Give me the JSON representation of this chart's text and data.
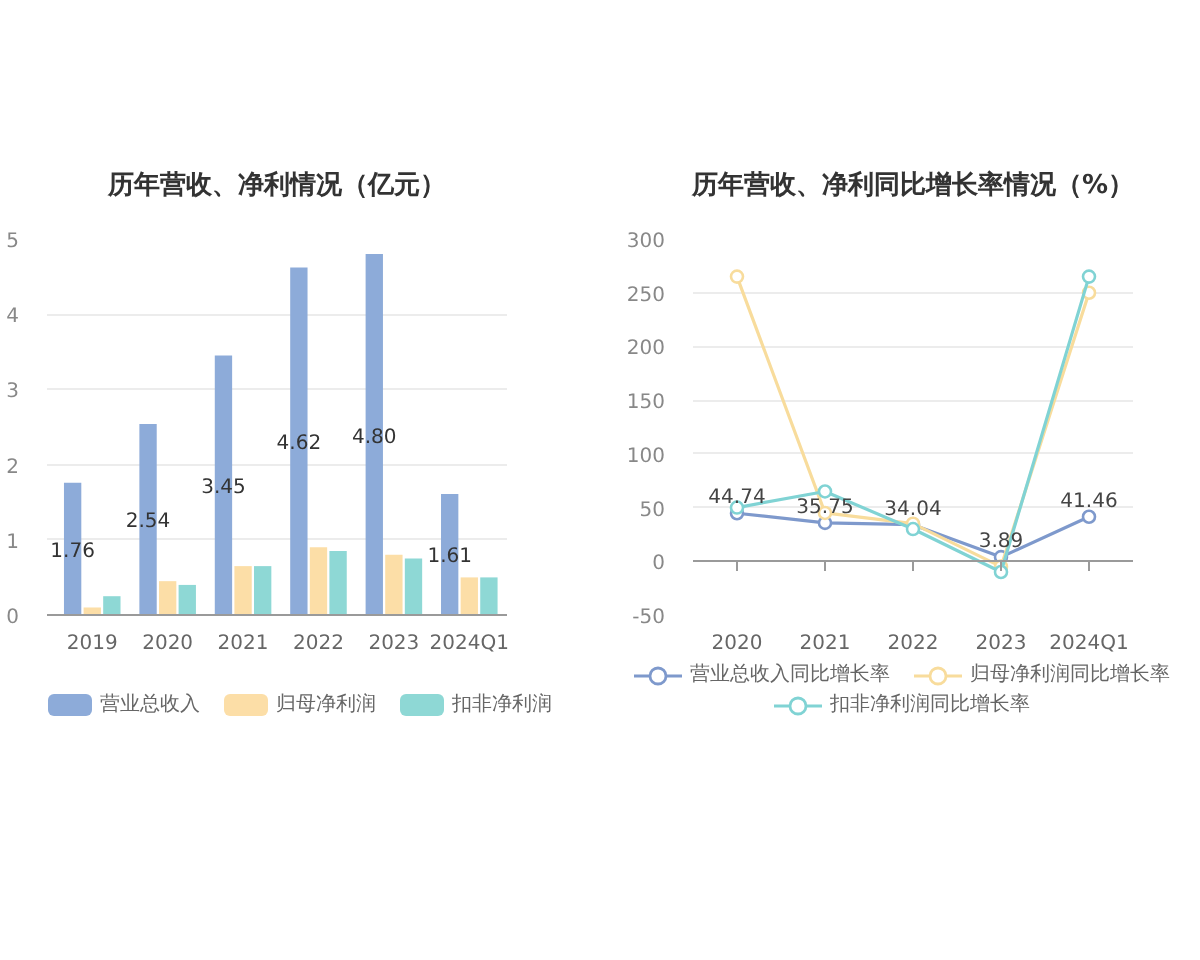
{
  "chart_data": [
    {
      "type": "bar",
      "title": "历年营收、净利情况（亿元）",
      "categories": [
        "2019",
        "2020",
        "2021",
        "2022",
        "2023",
        "2024Q1"
      ],
      "series": [
        {
          "name": "营业总收入",
          "color": "#8dabd9",
          "values": [
            1.76,
            2.54,
            3.45,
            4.62,
            4.8,
            1.61
          ],
          "value_labels": [
            "1.76",
            "2.54",
            "3.45",
            "4.62",
            "4.80",
            "1.61"
          ]
        },
        {
          "name": "归母净利润",
          "color": "#fcdea7",
          "values": [
            0.1,
            0.45,
            0.65,
            0.9,
            0.8,
            0.5
          ]
        },
        {
          "name": "扣非净利润",
          "color": "#8ed8d5",
          "values": [
            0.25,
            0.4,
            0.65,
            0.85,
            0.75,
            0.5
          ]
        }
      ],
      "ylim": [
        0,
        5
      ],
      "yticks": [
        0,
        1,
        2,
        3,
        4,
        5
      ],
      "grid": "y",
      "legend": "bottom"
    },
    {
      "type": "line",
      "title": "历年营收、净利同比增长率情况（%）",
      "categories": [
        "2020",
        "2021",
        "2022",
        "2023",
        "2024Q1"
      ],
      "series": [
        {
          "name": "营业总收入同比增长率",
          "color": "#7e99cc",
          "values": [
            44.74,
            35.75,
            34.04,
            3.89,
            41.46
          ],
          "value_labels": [
            "44.74",
            "35.75",
            "34.04",
            "3.89",
            "41.46"
          ]
        },
        {
          "name": "归母净利润同比增长率",
          "color": "#f8dc9c",
          "values": [
            265,
            45,
            35,
            -5,
            250
          ]
        },
        {
          "name": "扣非净利润同比增长率",
          "color": "#80d3d4",
          "values": [
            50,
            65,
            30,
            -10,
            265
          ]
        }
      ],
      "ylim": [
        -50,
        300
      ],
      "yticks": [
        -50,
        0,
        50,
        100,
        150,
        200,
        250,
        300
      ],
      "grid": "y",
      "legend": "bottom",
      "marker": "circle",
      "line_style": "solid"
    }
  ]
}
